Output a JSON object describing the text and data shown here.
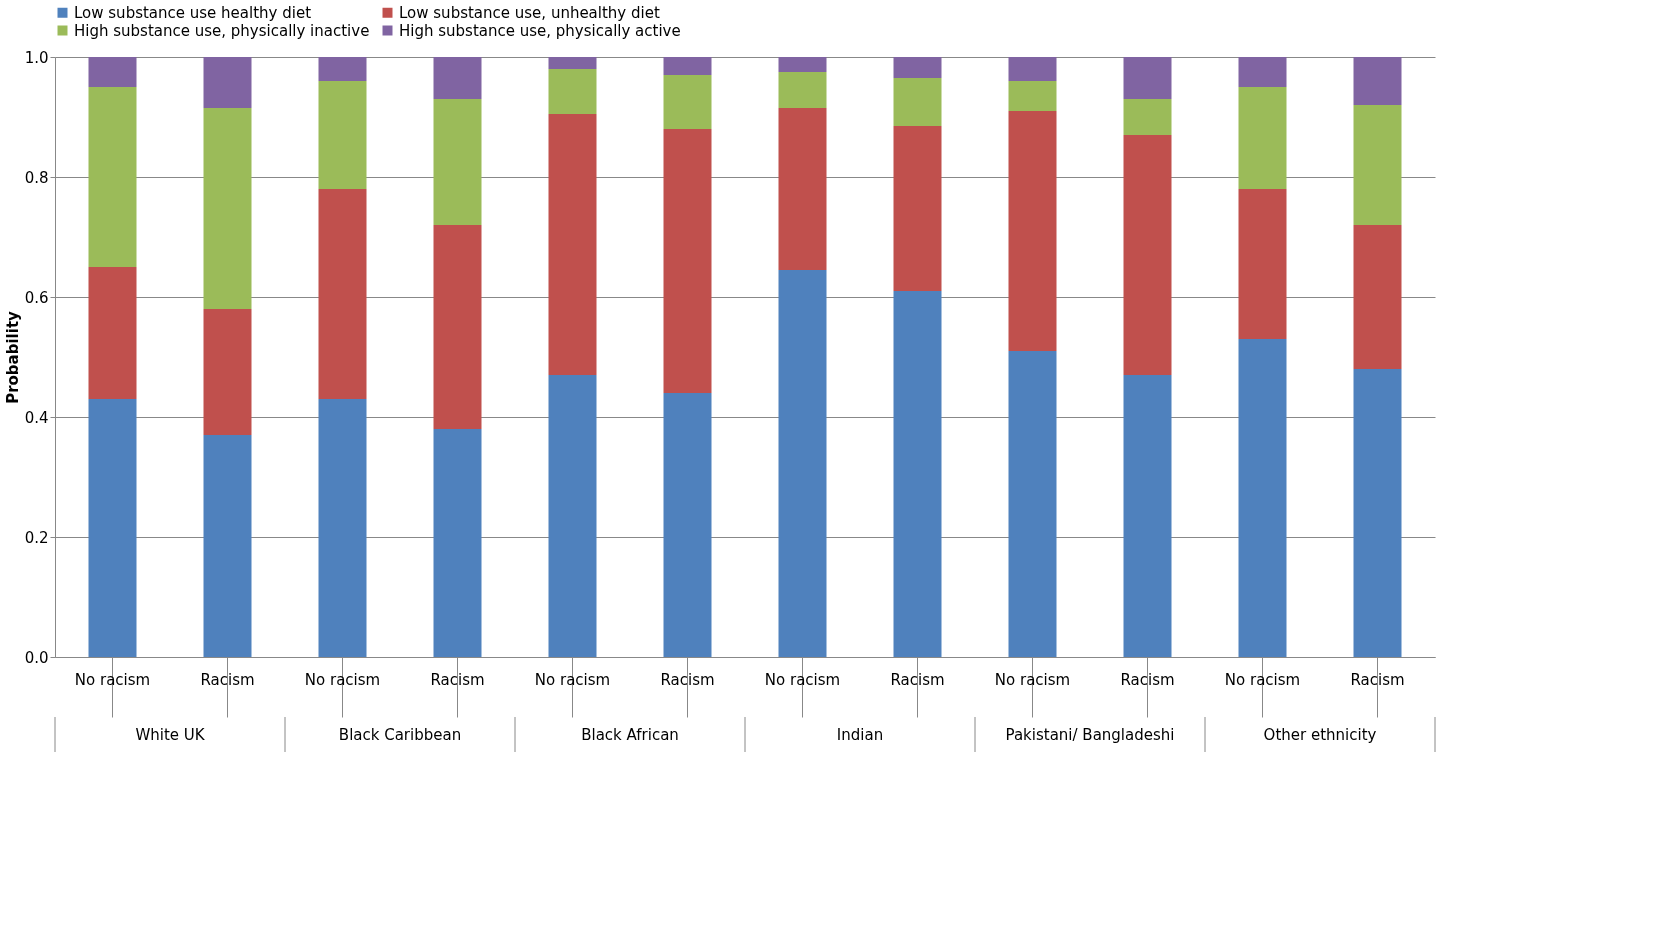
{
  "chart_data": {
    "type": "bar",
    "stacked": true,
    "ylabel": "Probability",
    "categories": [
      "No racism",
      "Racism",
      "No racism",
      "Racism",
      "No racism",
      "Racism",
      "No racism",
      "Racism",
      "No racism",
      "Racism",
      "No racism",
      "Racism"
    ],
    "annotations": [
      "White UK",
      "Black Caribbean",
      "Black African",
      "Indian",
      "Pakistani/ Bangladeshi",
      "Other ethnicity"
    ],
    "series": [
      {
        "name": "Low substance use healthy diet",
        "color": "#4f81bd",
        "values": [
          0.43,
          0.37,
          0.43,
          0.38,
          0.47,
          0.44,
          0.645,
          0.61,
          0.51,
          0.47,
          0.53,
          0.48
        ]
      },
      {
        "name": "Low substance use, unhealthy diet",
        "color": "#c0504d",
        "values": [
          0.22,
          0.21,
          0.35,
          0.34,
          0.435,
          0.44,
          0.27,
          0.275,
          0.4,
          0.4,
          0.25,
          0.24
        ]
      },
      {
        "name": "High substance use, physically inactive",
        "color": "#9bbb59",
        "values": [
          0.3,
          0.335,
          0.18,
          0.21,
          0.075,
          0.09,
          0.06,
          0.08,
          0.05,
          0.06,
          0.17,
          0.2
        ]
      },
      {
        "name": "High substance use, physically active",
        "color": "#8064a2",
        "values": [
          0.05,
          0.085,
          0.04,
          0.07,
          0.02,
          0.03,
          0.025,
          0.035,
          0.04,
          0.07,
          0.05,
          0.08
        ]
      }
    ],
    "ylim": [
      0,
      1
    ],
    "yticks": [
      {
        "value": 0,
        "label": "0.0"
      },
      0.2,
      0.4,
      0.6,
      0.8,
      {
        "value": 1,
        "label": "1.0"
      }
    ],
    "grid": "y",
    "legend": "top"
  }
}
